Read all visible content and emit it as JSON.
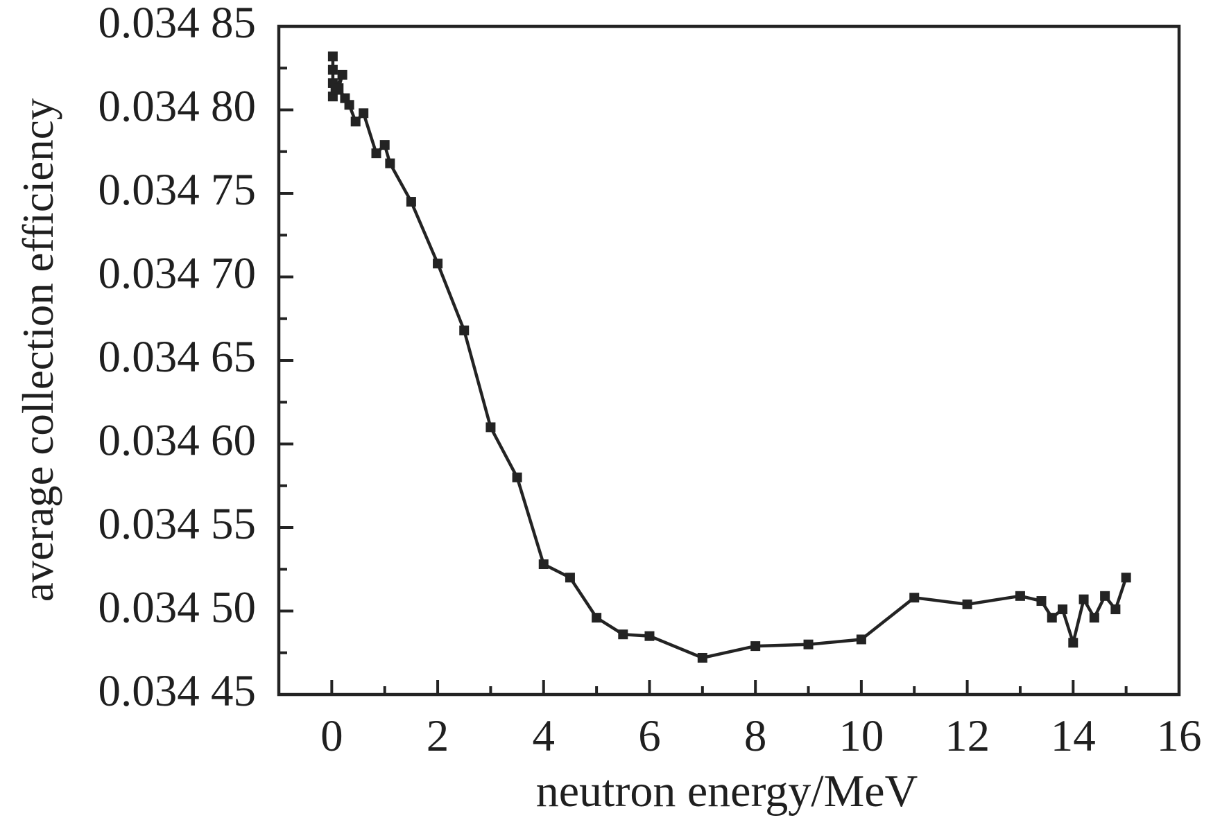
{
  "chart_data": {
    "type": "line",
    "title": "",
    "xlabel": "neutron energy/MeV",
    "ylabel": "average collection efficiency",
    "xlim": [
      -1,
      16
    ],
    "ylim": [
      0.03445,
      0.03485
    ],
    "grid": false,
    "legend": null,
    "x_major_ticks": [
      0,
      2,
      4,
      6,
      8,
      10,
      12,
      14,
      16
    ],
    "x_tick_labels": [
      "0",
      "2",
      "4",
      "6",
      "8",
      "10",
      "12",
      "14",
      "16"
    ],
    "x_minor_ticks": [
      1,
      3,
      5,
      7,
      9,
      11,
      13,
      15
    ],
    "y_major_ticks": [
      0.03445,
      0.0345,
      0.03455,
      0.0346,
      0.03465,
      0.0347,
      0.03475,
      0.0348,
      0.03485
    ],
    "y_tick_labels": [
      "0.034 45",
      "0.034 50",
      "0.034 55",
      "0.034 60",
      "0.034 65",
      "0.034 70",
      "0.034 75",
      "0.034 80",
      "0.034 85"
    ],
    "y_minor_ticks": [
      0.034475,
      0.034525,
      0.034575,
      0.034625,
      0.034675,
      0.034725,
      0.034775,
      0.034825
    ],
    "series": [
      {
        "name": "average collection efficiency",
        "marker": "square",
        "x": [
          0.02,
          0.02,
          0.02,
          0.02,
          0.07,
          0.2,
          0.13,
          0.25,
          0.33,
          0.45,
          0.6,
          0.84,
          1.0,
          1.1,
          1.5,
          2.0,
          2.5,
          3.0,
          3.5,
          4.0,
          4.5,
          5.0,
          5.5,
          6.0,
          7.0,
          8.0,
          9.0,
          10.0,
          11.0,
          12.0,
          13.0,
          13.4,
          13.6,
          13.8,
          14.0,
          14.2,
          14.4,
          14.6,
          14.8,
          15.0
        ],
        "y": [
          0.034832,
          0.034824,
          0.034816,
          0.034808,
          0.034812,
          0.034821,
          0.034813,
          0.034807,
          0.034803,
          0.034793,
          0.034798,
          0.034774,
          0.034779,
          0.034768,
          0.034745,
          0.034708,
          0.034668,
          0.03461,
          0.03458,
          0.034528,
          0.03452,
          0.034496,
          0.034486,
          0.034485,
          0.034472,
          0.034479,
          0.03448,
          0.034483,
          0.034508,
          0.034504,
          0.034509,
          0.034506,
          0.034496,
          0.034501,
          0.034481,
          0.034507,
          0.034496,
          0.034509,
          0.034501,
          0.03452
        ]
      }
    ],
    "colors": {
      "line": "#232323",
      "marker": "#232323",
      "axis": "#232323",
      "text": "#1f1f1f",
      "background": "#ffffff"
    }
  }
}
